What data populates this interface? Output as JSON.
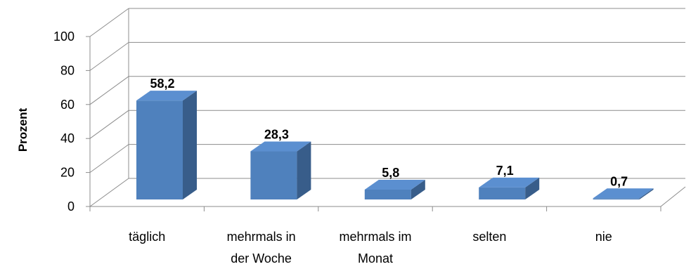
{
  "chart_data": {
    "type": "bar",
    "categories": [
      [
        "täglich"
      ],
      [
        "mehrmals in",
        "der Woche"
      ],
      [
        "mehrmals im",
        "Monat"
      ],
      [
        "selten"
      ],
      [
        "nie"
      ]
    ],
    "values": [
      58.2,
      28.3,
      5.8,
      7.1,
      0.7
    ],
    "data_labels": [
      "58,2",
      "28,3",
      "5,8",
      "7,1",
      "0,7"
    ],
    "ylabel": "Prozent",
    "ylim": [
      0,
      100
    ],
    "yticks": [
      0,
      20,
      40,
      60,
      80,
      100
    ],
    "grid": true,
    "style": "3d-column",
    "colors": {
      "bar_front": "#4f81bd",
      "bar_side": "#385d8a",
      "bar_top": "#5b8fd0",
      "grid": "#8c8c8c"
    }
  }
}
